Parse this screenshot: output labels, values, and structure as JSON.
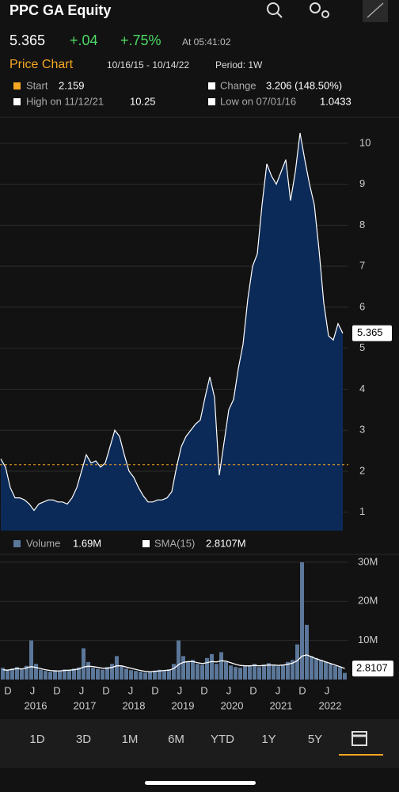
{
  "header": {
    "title": "PPC GA Equity",
    "price": 5.365,
    "change": "+.04",
    "change_pct": "+.75%",
    "time": "At 05:41:02"
  },
  "chart_header": {
    "title": "Price Chart",
    "range": "10/16/15 - 10/14/22",
    "period": "Period: 1W"
  },
  "legend": {
    "start_label": "Start",
    "start": 2.159,
    "change_label": "Change",
    "change": "3.206 (148.50%)",
    "high_label": "High on 11/12/21",
    "high": 10.25,
    "low_label": "Low on 07/01/16",
    "low": 1.0433
  },
  "chart_data": [
    {
      "type": "area",
      "color": "#0c2a57",
      "line_color": "#ffffff",
      "start_color": "#f5a623",
      "grid": true,
      "ylim": [
        0.55,
        10.5
      ],
      "yticks": [
        1,
        2,
        3,
        4,
        5,
        6,
        7,
        8,
        9,
        10
      ],
      "values": [
        2.3,
        2.1,
        1.6,
        1.35,
        1.35,
        1.3,
        1.2,
        1.0433,
        1.2,
        1.25,
        1.3,
        1.3,
        1.25,
        1.25,
        1.2,
        1.35,
        1.6,
        2.0,
        2.4,
        2.2,
        2.25,
        2.1,
        2.2,
        2.6,
        3.0,
        2.85,
        2.4,
        2.0,
        1.85,
        1.6,
        1.4,
        1.25,
        1.25,
        1.3,
        1.3,
        1.35,
        1.5,
        2.1,
        2.6,
        2.85,
        3.0,
        3.15,
        3.25,
        3.8,
        4.3,
        3.8,
        1.9,
        2.7,
        3.5,
        3.75,
        4.5,
        5.1,
        6.2,
        7.0,
        7.3,
        8.5,
        9.5,
        9.2,
        9.0,
        9.3,
        9.6,
        8.6,
        9.3,
        10.25,
        9.6,
        9.0,
        8.5,
        7.4,
        6.1,
        5.3,
        5.2,
        5.6,
        5.365
      ]
    },
    {
      "type": "bar",
      "grid": true,
      "ylim": [
        0,
        31
      ],
      "yticks": [
        {
          "value": 10,
          "label": "10M"
        },
        {
          "value": 20,
          "label": "20M"
        },
        {
          "value": 30,
          "label": "30M"
        }
      ],
      "series": [
        {
          "name": "Volume",
          "legend_value": "1.69M",
          "color": "#5b7799",
          "values": [
            3,
            2.5,
            2.8,
            3.2,
            2.6,
            3.5,
            10,
            4,
            2.5,
            2.2,
            2,
            2.4,
            2.1,
            2.6,
            2.3,
            2.8,
            3.1,
            8,
            4.5,
            3,
            2.7,
            2.5,
            3.2,
            4,
            6,
            3.5,
            2.8,
            2.4,
            2.2,
            2,
            1.8,
            2.1,
            2.3,
            2.5,
            2.2,
            2.6,
            4,
            10,
            6,
            4.5,
            5,
            4,
            3.8,
            5.5,
            6.5,
            4,
            7,
            4.5,
            3.6,
            3.2,
            3,
            3.4,
            3.6,
            4,
            3.2,
            3.8,
            4.2,
            3.6,
            3.4,
            3.8,
            4.5,
            5,
            9,
            30,
            14,
            6,
            5.5,
            5,
            4.5,
            4,
            3.5,
            3.2,
            1.69
          ]
        },
        {
          "name": "SMA(15)",
          "legend_value": "2.8107M",
          "color": "#ffffff",
          "type": "line",
          "values": [
            2.5,
            2.4,
            2.6,
            2.8,
            2.7,
            3,
            3.3,
            3.1,
            2.8,
            2.5,
            2.3,
            2.2,
            2.2,
            2.3,
            2.4,
            2.5,
            2.7,
            3.2,
            3.4,
            3.3,
            3.1,
            2.9,
            2.9,
            3.1,
            3.5,
            3.5,
            3.2,
            2.9,
            2.6,
            2.3,
            2.1,
            2,
            2.1,
            2.2,
            2.3,
            2.4,
            2.8,
            3.8,
            4.4,
            4.6,
            4.6,
            4.3,
            4.1,
            4.3,
            4.6,
            4.5,
            4.8,
            4.7,
            4.3,
            3.9,
            3.6,
            3.5,
            3.5,
            3.6,
            3.5,
            3.6,
            3.7,
            3.7,
            3.6,
            3.7,
            3.9,
            4.2,
            4.8,
            6,
            6.3,
            5.8,
            5.3,
            4.9,
            4.5,
            4.1,
            3.7,
            3.3,
            2.8107
          ]
        }
      ],
      "months": [
        "D",
        "J",
        "D",
        "J",
        "D",
        "J",
        "D",
        "J",
        "D",
        "J",
        "D",
        "J",
        "D",
        "J"
      ],
      "years": [
        "2016",
        "2017",
        "2018",
        "2019",
        "2020",
        "2021",
        "2022"
      ]
    }
  ],
  "tabs": [
    "1D",
    "3D",
    "1M",
    "6M",
    "YTD",
    "1Y",
    "5Y"
  ]
}
